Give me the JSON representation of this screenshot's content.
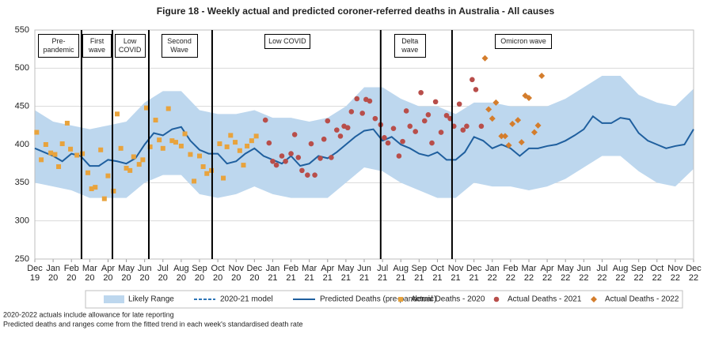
{
  "chart_data": {
    "type": "line",
    "title": "Figure 18 - Weekly actual and predicted coroner-referred deaths in Australia - All causes",
    "xlim": [
      0,
      36
    ],
    "xticks": [
      {
        "value": 0,
        "label": "Dec 19"
      },
      {
        "value": 1,
        "label": "Jan 20"
      },
      {
        "value": 2,
        "label": "Feb 20"
      },
      {
        "value": 3,
        "label": "Mar 20"
      },
      {
        "value": 4,
        "label": "Apr 20"
      },
      {
        "value": 5,
        "label": "May 20"
      },
      {
        "value": 6,
        "label": "Jun 20"
      },
      {
        "value": 7,
        "label": "Jul 20"
      },
      {
        "value": 8,
        "label": "Aug 20"
      },
      {
        "value": 9,
        "label": "Sep 20"
      },
      {
        "value": 10,
        "label": "Oct 20"
      },
      {
        "value": 11,
        "label": "Nov 20"
      },
      {
        "value": 12,
        "label": "Dec 20"
      },
      {
        "value": 13,
        "label": "Jan 21"
      },
      {
        "value": 14,
        "label": "Feb 21"
      },
      {
        "value": 15,
        "label": "Mar 21"
      },
      {
        "value": 16,
        "label": "Apr 21"
      },
      {
        "value": 17,
        "label": "May 21"
      },
      {
        "value": 18,
        "label": "Jun 21"
      },
      {
        "value": 19,
        "label": "Jul 21"
      },
      {
        "value": 20,
        "label": "Aug 21"
      },
      {
        "value": 21,
        "label": "Sep 21"
      },
      {
        "value": 22,
        "label": "Oct 21"
      },
      {
        "value": 23,
        "label": "Nov 21"
      },
      {
        "value": 24,
        "label": "Dec 21"
      },
      {
        "value": 25,
        "label": "Jan 22"
      },
      {
        "value": 26,
        "label": "Feb 22"
      },
      {
        "value": 27,
        "label": "Mar 22"
      },
      {
        "value": 28,
        "label": "Apr 22"
      },
      {
        "value": 29,
        "label": "May 22"
      },
      {
        "value": 30,
        "label": "Jun 22"
      },
      {
        "value": 31,
        "label": "Jul 22"
      },
      {
        "value": 32,
        "label": "Aug 22"
      },
      {
        "value": 33,
        "label": "Sep 22"
      },
      {
        "value": 34,
        "label": "Oct 22"
      },
      {
        "value": 35,
        "label": "Nov 22"
      },
      {
        "value": 36,
        "label": "Dec 22"
      }
    ],
    "ylim": [
      250,
      550
    ],
    "yticks": [
      250,
      300,
      350,
      400,
      450,
      500,
      550
    ],
    "grid": true,
    "range": {
      "name": "Likely Range",
      "color": "#bdd7ee",
      "x": [
        0,
        1,
        2,
        3,
        4,
        5,
        6,
        7,
        8,
        9,
        10,
        11,
        12,
        13,
        14,
        15,
        16,
        17,
        18,
        19,
        20,
        21,
        22,
        23,
        24,
        25,
        26,
        27,
        28,
        29,
        30,
        31,
        32,
        33,
        34,
        35,
        36
      ],
      "upper": [
        445,
        430,
        425,
        420,
        425,
        430,
        455,
        470,
        470,
        445,
        440,
        440,
        445,
        435,
        435,
        430,
        435,
        450,
        475,
        475,
        460,
        450,
        450,
        440,
        455,
        455,
        450,
        450,
        450,
        460,
        475,
        490,
        490,
        465,
        455,
        450,
        473
      ],
      "lower": [
        350,
        345,
        340,
        330,
        330,
        330,
        350,
        360,
        360,
        335,
        330,
        335,
        345,
        335,
        330,
        330,
        330,
        350,
        370,
        365,
        350,
        340,
        330,
        330,
        350,
        345,
        345,
        340,
        345,
        355,
        370,
        385,
        385,
        365,
        350,
        345,
        368
      ]
    },
    "legend_only": [
      {
        "name": "2020-21 model",
        "color": "#2e75b6",
        "dash": true
      }
    ],
    "series": [
      {
        "name": "Predicted Deaths (pre-pandemic)",
        "type": "line",
        "color": "#1f5f9e",
        "x": [
          0,
          0.5,
          1,
          1.5,
          2,
          2.5,
          3,
          3.5,
          4,
          4.5,
          5,
          5.5,
          6,
          6.5,
          7,
          7.5,
          8,
          8.5,
          9,
          9.5,
          10,
          10.5,
          11,
          11.5,
          12,
          12.5,
          13,
          13.5,
          14,
          14.5,
          15,
          15.5,
          16,
          16.5,
          17,
          17.5,
          18,
          18.5,
          19,
          19.5,
          20,
          20.5,
          21,
          21.5,
          22,
          22.5,
          23,
          23.5,
          24,
          24.5,
          25,
          25.5,
          26,
          26.5,
          27,
          27.5,
          28,
          28.5,
          29,
          29.5,
          30,
          30.5,
          31,
          31.5,
          32,
          32.5,
          33,
          33.5,
          34,
          34.5,
          35,
          35.5,
          36
        ],
        "values": [
          395,
          390,
          385,
          378,
          388,
          385,
          372,
          372,
          380,
          378,
          375,
          382,
          400,
          415,
          412,
          420,
          423,
          405,
          393,
          388,
          388,
          375,
          378,
          388,
          395,
          385,
          380,
          375,
          385,
          372,
          375,
          385,
          382,
          390,
          400,
          410,
          418,
          420,
          405,
          410,
          400,
          395,
          388,
          385,
          390,
          380,
          380,
          390,
          410,
          405,
          395,
          400,
          395,
          385,
          395,
          395,
          398,
          400,
          405,
          412,
          420,
          437,
          428,
          428,
          435,
          433,
          415,
          405,
          400,
          395,
          398,
          400,
          420
        ]
      },
      {
        "name": "Actual Deaths - 2020",
        "type": "scatter",
        "marker": "square",
        "color": "#e8a33d",
        "x": [
          0.1,
          0.35,
          0.6,
          0.87,
          1.1,
          1.3,
          1.5,
          1.77,
          1.95,
          2.3,
          2.6,
          2.9,
          3.1,
          3.3,
          3.6,
          3.8,
          4.0,
          4.3,
          4.5,
          4.7,
          5.0,
          5.2,
          5.4,
          5.7,
          5.9,
          6.1,
          6.3,
          6.6,
          6.8,
          7.0,
          7.3,
          7.5,
          7.7,
          8.0,
          8.2,
          8.5,
          8.7,
          9.0,
          9.2,
          9.4,
          9.65,
          10.1,
          10.3,
          10.5,
          10.7,
          10.95,
          11.2,
          11.4,
          11.6,
          11.85,
          12.1
        ],
        "values": [
          416,
          380,
          400,
          389,
          387,
          371,
          401,
          428,
          394,
          386,
          388,
          363,
          342,
          344,
          393,
          329,
          359,
          339,
          440,
          395,
          369,
          366,
          384,
          374,
          380,
          448,
          397,
          432,
          406,
          395,
          447,
          405,
          403,
          398,
          414,
          387,
          352,
          385,
          371,
          362,
          366,
          401,
          356,
          397,
          412,
          403,
          392,
          373,
          398,
          405,
          411
        ]
      },
      {
        "name": "Actual Deaths - 2021",
        "type": "scatter",
        "marker": "circle",
        "color": "#b84e4a",
        "x": [
          12.6,
          12.8,
          13.0,
          13.2,
          13.5,
          13.7,
          14.0,
          14.2,
          14.4,
          14.6,
          14.9,
          15.1,
          15.3,
          15.6,
          15.8,
          16.0,
          16.2,
          16.5,
          16.7,
          16.9,
          17.1,
          17.3,
          17.6,
          17.9,
          18.1,
          18.3,
          18.6,
          18.9,
          19.1,
          19.3,
          19.6,
          19.9,
          20.1,
          20.3,
          20.5,
          20.8,
          21.1,
          21.3,
          21.5,
          21.7,
          21.9,
          22.2,
          22.5,
          22.7,
          22.9,
          23.2,
          23.4,
          23.6,
          23.9,
          24.1,
          24.4
        ],
        "values": [
          432,
          402,
          378,
          373,
          385,
          378,
          388,
          413,
          383,
          366,
          360,
          401,
          360,
          382,
          407,
          431,
          383,
          419,
          411,
          424,
          422,
          443,
          460,
          441,
          459,
          457,
          434,
          426,
          409,
          402,
          421,
          385,
          404,
          444,
          424,
          417,
          468,
          431,
          439,
          402,
          456,
          416,
          438,
          434,
          424,
          453,
          419,
          424,
          485,
          472,
          424
        ]
      },
      {
        "name": "Actual Deaths - 2022",
        "type": "scatter",
        "marker": "diamond",
        "color": "#d47d2c",
        "x": [
          24.6,
          24.8,
          25.0,
          25.2,
          25.5,
          25.7,
          25.9,
          26.1,
          26.4,
          26.6,
          26.8,
          27.0,
          27.3,
          27.5,
          27.7
        ],
        "values": [
          513,
          446,
          434,
          455,
          411,
          411,
          399,
          427,
          432,
          403,
          464,
          461,
          416,
          425,
          490
        ]
      }
    ],
    "event_lines": [
      2.55,
      4.24,
      6.23,
      9.69,
      18.9,
      22.8
    ],
    "annotations": [
      {
        "text": "Pre-pandemic",
        "x": 1.3
      },
      {
        "text": "First wave",
        "x": 3.4
      },
      {
        "text": "Low COVID",
        "x": 5.2
      },
      {
        "text": "Second Wave",
        "x": 7.9
      },
      {
        "text": "Low COVID",
        "x": 13.8
      },
      {
        "text": "Delta wave",
        "x": 20.5
      },
      {
        "text": "Omicron wave",
        "x": 26.7
      }
    ],
    "notes": [
      "2020-2022  actuals include allowance for late reporting",
      "Predicted deaths and ranges come from the fitted trend in each week's standardised death rate"
    ]
  }
}
